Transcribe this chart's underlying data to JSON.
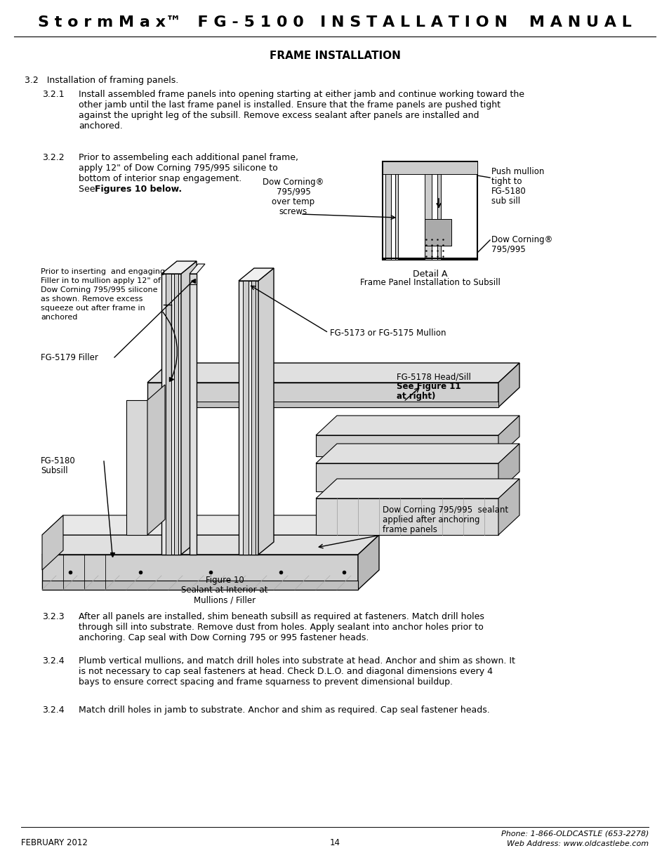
{
  "title_header": "S t o r m M a x™   F G - 5 1 0 0   I N S T A L L A T I O N    M A N U A L",
  "section_title": "FRAME INSTALLATION",
  "bg_color": "#ffffff",
  "text_color": "#000000",
  "header_text_color": "#000000",
  "footer_left": "FEBRUARY 2012",
  "footer_center": "14",
  "footer_right_line1": "Phone: 1-866-OLDCASTLE (653-2278)",
  "footer_right_line2": "Web Address: www.oldcastlebe.com",
  "section_32_title": "3.2   Installation of framing panels.",
  "section_321_label": "3.2.1",
  "section_321_indent": "Install assembled frame panels into opening starting at either jamb and continue working toward the",
  "section_321_line2": "other jamb until the last frame panel is installed. Ensure that the frame panels are pushed tight",
  "section_321_line3": "against the upright leg of the subsill. Remove excess sealant after panels are installed and",
  "section_321_line4": "anchored.",
  "section_322_label": "3.2.2",
  "section_322_line1": "Prior to assembeling each additional panel frame,",
  "section_322_line2": "apply 12\" of Dow Corning 795/995 silicone to",
  "section_322_line3": "bottom of interior snap engagement.",
  "section_322_line4_pre": "See  ",
  "section_322_line4_bold": "Figures 10 below",
  "section_322_line4_post": ".",
  "callout_dow_corning_line1": "Dow Corning®",
  "callout_dow_corning_line2": "795/995",
  "callout_dow_corning_line3": "over temp",
  "callout_dow_corning_line4": "screws",
  "callout_push_mullion_line1": "Push mullion",
  "callout_push_mullion_line2": "tight to",
  "callout_push_mullion_line3": "FG-5180",
  "callout_push_mullion_line4": "sub sill",
  "callout_dow_corning2_line1": "Dow Corning®",
  "callout_dow_corning2_line2": "795/995",
  "callout_detail_a": "Detail A",
  "callout_detail_a_sub": "Frame Panel Installation to Subsill",
  "callout_prior_line1": "Prior to inserting  and engaging",
  "callout_prior_line2": "Filler in to mullion apply 12\" of",
  "callout_prior_line3": "Dow Corning 795/995 silicone",
  "callout_prior_line4": "as shown. Remove excess",
  "callout_prior_line5": "squeeze out after frame in",
  "callout_prior_line6": "anchored",
  "callout_fg5173": "FG-5173 or FG-5175 Mullion",
  "callout_fg5179": "FG-5179 Filler",
  "callout_fg5178_line1": "FG-5178 Head/Sill",
  "callout_fg5178_line2": "See Figure 11",
  "callout_fg5178_line3": "at right)",
  "callout_fg5180_line1": "FG-5180",
  "callout_fg5180_line2": "Subsill",
  "callout_fig10_line1": "Figure 10",
  "callout_fig10_line2": "Sealant at Interior at",
  "callout_fig10_line3": "Mullions / Filler",
  "callout_dow_sealant_line1": "Dow Corning 795/995  sealant",
  "callout_dow_sealant_line2": "applied after anchoring",
  "callout_dow_sealant_line3": "frame panels",
  "section_323_label": "3.2.3",
  "section_323_line1": "After all panels are installed, shim beneath subsill as required at fasteners. Match drill holes",
  "section_323_line2": "through sill into substrate. Remove dust from holes. Apply sealant into anchor holes prior to",
  "section_323_line3": "anchoring. Cap seal with Dow Corning 795 or 995 fastener heads.",
  "section_324a_label": "3.2.4",
  "section_324a_line1": "Plumb vertical mullions, and match drill holes into substrate at head. Anchor and shim as shown. It",
  "section_324a_line2": "is not necessary to cap seal fasteners at head. Check D.L.O. and diagonal dimensions every 4",
  "section_324a_line3": "bays to ensure correct spacing and frame squarness to prevent dimensional buildup.",
  "section_324b_label": "3.2.4",
  "section_324b_line1": "Match drill holes in jamb to substrate. Anchor and shim as required. Cap seal fastener heads."
}
